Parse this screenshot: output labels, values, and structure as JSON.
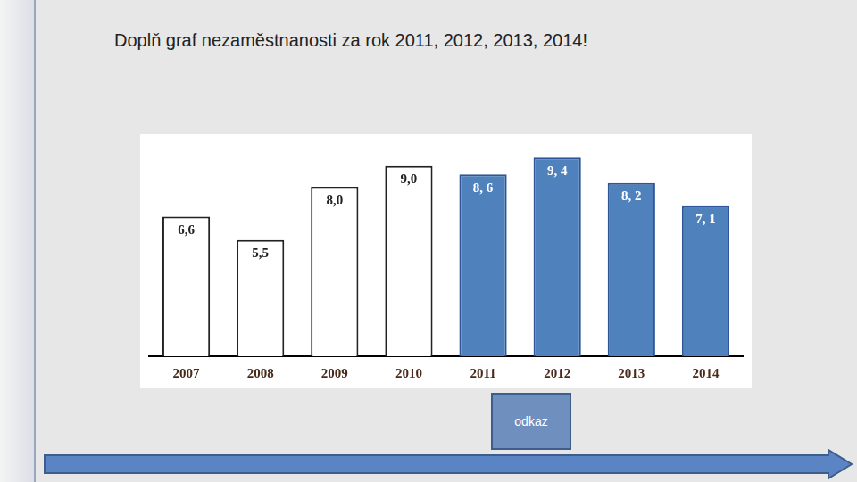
{
  "chart_data": {
    "type": "bar",
    "title": "Doplň graf nezaměstnanosti za rok 2011, 2012, 2013, 2014!",
    "categories": [
      "2007",
      "2008",
      "2009",
      "2010",
      "2011",
      "2012",
      "2013",
      "2014"
    ],
    "values": [
      6.6,
      5.5,
      8.0,
      9.0,
      8.6,
      9.4,
      8.2,
      7.1
    ],
    "value_labels": [
      "6,6",
      "5,5",
      "8,0",
      "9,0",
      "8, 6",
      "9, 4",
      "8, 2",
      "7, 1"
    ],
    "colors": [
      "#ffffff",
      "#ffffff",
      "#ffffff",
      "#ffffff",
      "#4f81bd",
      "#4f81bd",
      "#4f81bd",
      "#4f81bd"
    ],
    "data_labels": true,
    "tick_labels": "x",
    "grid": false
  },
  "link_button": "odkaz"
}
